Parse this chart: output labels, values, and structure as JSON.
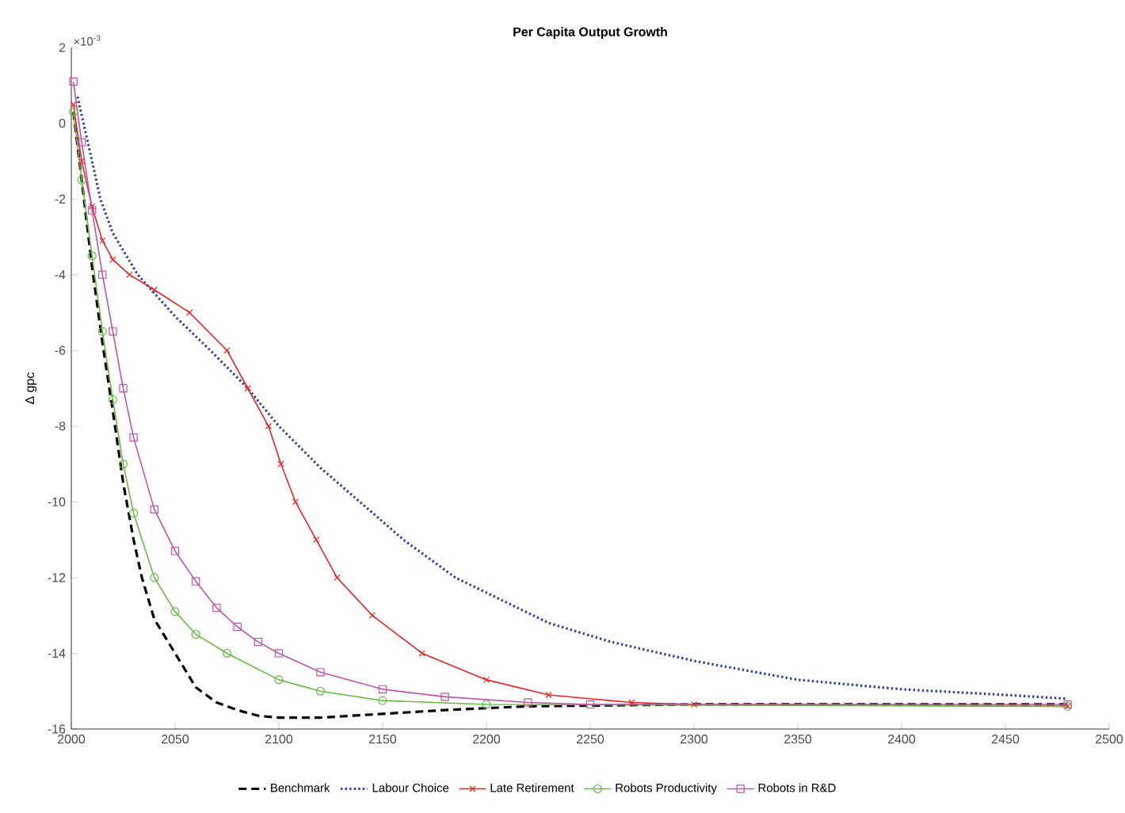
{
  "chart_data": {
    "type": "line",
    "title": "Per Capita Output Growth",
    "ylabel": "Δ gpc",
    "annotations": [
      "×10$^{-3}$"
    ],
    "xlim": [
      2000,
      2500
    ],
    "ylim": [
      -16,
      2
    ],
    "xticks": [
      2000,
      2050,
      2100,
      2150,
      2200,
      2250,
      2300,
      2350,
      2400,
      2450,
      2500
    ],
    "yticks": [
      -16,
      -14,
      -12,
      -10,
      -8,
      -6,
      -4,
      -2,
      0,
      2
    ],
    "grid": false,
    "legend": "bottom",
    "series": [
      {
        "name": "Benchmark",
        "color": "#000000",
        "line_style": "dashed",
        "marker": "none",
        "x": [
          2001,
          2005,
          2010,
          2015,
          2020,
          2025,
          2030,
          2034,
          2040,
          2050,
          2060,
          2070,
          2080,
          2090,
          2100,
          2120,
          2150,
          2180,
          2220,
          2300,
          2480
        ],
        "values": [
          0.3,
          -1.5,
          -3.8,
          -5.8,
          -7.6,
          -9.5,
          -11,
          -12,
          -13.1,
          -14,
          -14.9,
          -15.3,
          -15.5,
          -15.65,
          -15.7,
          -15.7,
          -15.6,
          -15.5,
          -15.4,
          -15.35,
          -15.35
        ]
      },
      {
        "name": "Labour Choice",
        "color": "#2b3fa8",
        "line_style": "dotted",
        "marker": "none",
        "x": [
          2003,
          2010,
          2014,
          2020,
          2032,
          2050,
          2067,
          2085,
          2100,
          2120,
          2139,
          2160,
          2185,
          2230,
          2260,
          2300,
          2350,
          2400,
          2450,
          2480
        ],
        "values": [
          0.7,
          -1,
          -2,
          -2.9,
          -4,
          -5.1,
          -6,
          -7,
          -8,
          -9.1,
          -10,
          -11,
          -12,
          -13.2,
          -13.7,
          -14.2,
          -14.7,
          -14.95,
          -15.1,
          -15.2
        ]
      },
      {
        "name": "Late Retirement",
        "color": "#ee2222",
        "line_style": "solid",
        "marker": "cross",
        "x": [
          2001,
          2005,
          2010,
          2015,
          2020,
          2028,
          2040,
          2057,
          2075,
          2085,
          2095,
          2101,
          2108,
          2118,
          2128,
          2145,
          2169,
          2200,
          2230,
          2270,
          2300,
          2480
        ],
        "values": [
          0.5,
          -1,
          -2.2,
          -3.1,
          -3.6,
          -4,
          -4.4,
          -5,
          -6,
          -7,
          -8,
          -9,
          -10,
          -11,
          -12,
          -13,
          -14,
          -14.7,
          -15.1,
          -15.3,
          -15.35,
          -15.4
        ]
      },
      {
        "name": "Robots Productivity",
        "color": "#66bb44",
        "line_style": "solid",
        "marker": "circle",
        "x": [
          2001,
          2005,
          2010,
          2015,
          2020,
          2025,
          2030,
          2040,
          2050,
          2060,
          2075,
          2100,
          2120,
          2150,
          2200,
          2480
        ],
        "values": [
          0.3,
          -1.5,
          -3.5,
          -5.5,
          -7.3,
          -9,
          -10.3,
          -12,
          -12.9,
          -13.5,
          -14,
          -14.7,
          -15,
          -15.25,
          -15.35,
          -15.4
        ]
      },
      {
        "name": "Robots in R&D",
        "color": "#bb55aa",
        "line_style": "solid",
        "marker": "square",
        "x": [
          2001,
          2005,
          2010,
          2015,
          2020,
          2025,
          2030,
          2040,
          2050,
          2060,
          2070,
          2080,
          2090,
          2100,
          2120,
          2150,
          2180,
          2220,
          2250,
          2480
        ],
        "values": [
          1.1,
          -0.5,
          -2.3,
          -4,
          -5.5,
          -7,
          -8.3,
          -10.2,
          -11.3,
          -12.1,
          -12.8,
          -13.3,
          -13.7,
          -14,
          -14.5,
          -14.95,
          -15.15,
          -15.3,
          -15.35,
          -15.35
        ]
      }
    ]
  }
}
